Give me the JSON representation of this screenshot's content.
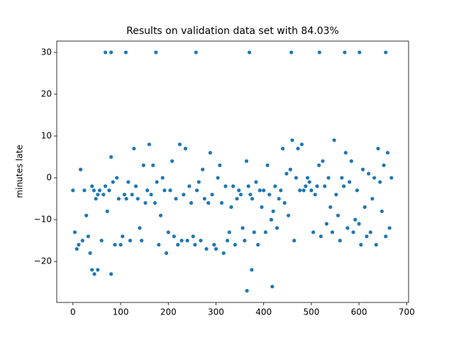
{
  "chart_data": {
    "type": "scatter",
    "title": "Results on validation data set with 84.03%",
    "y_label": "minutes late",
    "color": "#1f77b4",
    "x": [
      0,
      4,
      8,
      12,
      16,
      20,
      24,
      28,
      32,
      36,
      40,
      44,
      48,
      52,
      56,
      60,
      64,
      68,
      72,
      76,
      80,
      84,
      88,
      92,
      96,
      100,
      104,
      108,
      112,
      116,
      120,
      124,
      128,
      132,
      136,
      140,
      144,
      148,
      152,
      156,
      160,
      164,
      168,
      172,
      176,
      180,
      184,
      188,
      192,
      196,
      200,
      204,
      208,
      212,
      216,
      220,
      224,
      228,
      232,
      236,
      240,
      244,
      248,
      252,
      256,
      260,
      264,
      268,
      272,
      276,
      280,
      284,
      288,
      292,
      296,
      300,
      304,
      308,
      312,
      316,
      320,
      324,
      328,
      332,
      336,
      340,
      344,
      348,
      352,
      356,
      360,
      364,
      368,
      372,
      376,
      380,
      384,
      388,
      392,
      396,
      400,
      404,
      408,
      412,
      416,
      420,
      424,
      428,
      432,
      436,
      440,
      444,
      448,
      452,
      456,
      460,
      464,
      468,
      472,
      476,
      480,
      484,
      488,
      492,
      496,
      500,
      504,
      508,
      512,
      516,
      520,
      524,
      528,
      532,
      536,
      540,
      544,
      548,
      552,
      556,
      560,
      564,
      568,
      572,
      576,
      580,
      584,
      588,
      592,
      596,
      600,
      604,
      608,
      612,
      616,
      620,
      624,
      628,
      632,
      636,
      640,
      644,
      648,
      652,
      656,
      660,
      664,
      668,
      68,
      80,
      111,
      174,
      258,
      370,
      458,
      517,
      570,
      601,
      656,
      365,
      418,
      375,
      40,
      45,
      80,
      52
    ],
    "values": [
      -3,
      -13,
      -17,
      -16,
      2,
      -15,
      -3,
      -9,
      -14,
      -18,
      -2,
      -3,
      -5,
      -4,
      -3,
      -15,
      -4,
      -2,
      -8,
      -3,
      5,
      -1,
      -16,
      0,
      -5,
      -16,
      -14,
      -4,
      -5,
      -1,
      -15,
      -4,
      7,
      -2,
      -5,
      -12,
      -15,
      3,
      -6,
      -3,
      8,
      -4,
      3,
      -6,
      -1,
      -16,
      -9,
      0,
      -3,
      -18,
      -13,
      -3,
      4,
      -14,
      -5,
      -16,
      8,
      -15,
      -4,
      7,
      -15,
      -2,
      -6,
      -14,
      -16,
      -3,
      -1,
      -15,
      2,
      -5,
      -17,
      -6,
      6,
      -4,
      -16,
      -17,
      0,
      3,
      -6,
      -18,
      -2,
      -15,
      -13,
      -7,
      -2,
      -16,
      -5,
      -3,
      -4,
      -12,
      -15,
      4,
      -2,
      -4,
      -5,
      -13,
      -1,
      -16,
      -3,
      -7,
      -3,
      -13,
      3,
      -4,
      -10,
      -8,
      -2,
      -12,
      -5,
      -3,
      7,
      -6,
      1,
      -9,
      2,
      9,
      -15,
      0,
      7,
      -3,
      8,
      -3,
      -2,
      0,
      -1,
      -3,
      -13,
      -4,
      -2,
      3,
      -14,
      4,
      -2,
      -11,
      0,
      -7,
      -13,
      9,
      -4,
      -9,
      -15,
      0,
      -2,
      6,
      -12,
      -1,
      4,
      -13,
      -10,
      -3,
      -11,
      -16,
      2,
      -7,
      -14,
      1,
      -13,
      -5,
      0,
      -16,
      7,
      -1,
      -8,
      3,
      -14,
      6,
      -12,
      0,
      30,
      30,
      30,
      30,
      30,
      30,
      30,
      30,
      30,
      30,
      30,
      -27,
      -26,
      -22,
      -22,
      -23,
      -23,
      -22
    ],
    "xlim": [
      -34,
      704
    ],
    "ylim": [
      -29.8,
      32.7
    ],
    "xticks": [
      0,
      100,
      200,
      300,
      400,
      500,
      600,
      700
    ],
    "yticks": [
      {
        "value": -20,
        "label": "−20"
      },
      {
        "value": -10,
        "label": "−10"
      },
      0,
      10,
      20,
      30
    ]
  }
}
